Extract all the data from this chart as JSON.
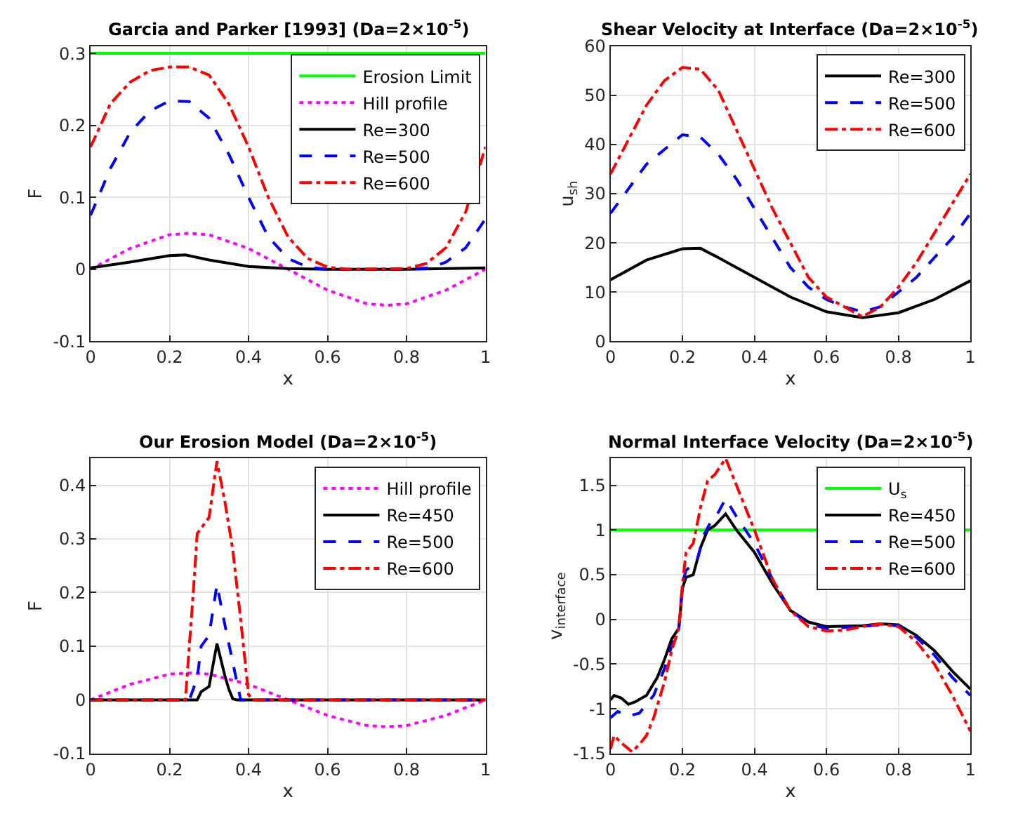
{
  "chart_data": [
    {
      "type": "line",
      "title": "Garcia and Parker [1993] (Da=2×10$^{-5}$)",
      "xlabel": "x",
      "ylabel": "F",
      "xlim": [
        0,
        1
      ],
      "ylim": [
        -0.1,
        0.31
      ],
      "xticks": [
        0,
        0.2,
        0.4,
        0.6,
        0.8,
        1
      ],
      "yticks": [
        -0.1,
        0,
        0.1,
        0.2,
        0.3
      ],
      "grid": true,
      "legend": "top right",
      "series": [
        {
          "name": "Erosion Limit",
          "color": "#00ff00",
          "line_style": "solid",
          "x": [
            0,
            1
          ],
          "values": [
            0.3,
            0.3
          ]
        },
        {
          "name": "Hill profile",
          "color": "#ff00ff",
          "line_style": "dotted",
          "x": [
            0,
            0.1,
            0.2,
            0.25,
            0.3,
            0.4,
            0.5,
            0.6,
            0.7,
            0.75,
            0.8,
            0.9,
            1
          ],
          "values": [
            0,
            0.029,
            0.048,
            0.05,
            0.048,
            0.029,
            0,
            -0.029,
            -0.048,
            -0.05,
            -0.048,
            -0.029,
            0
          ]
        },
        {
          "name": "Re=300",
          "color": "#000000",
          "line_style": "solid",
          "x": [
            0,
            0.1,
            0.2,
            0.24,
            0.3,
            0.4,
            0.5,
            0.6,
            0.8,
            0.9,
            1
          ],
          "values": [
            0.002,
            0.01,
            0.019,
            0.02,
            0.013,
            0.004,
            0.001,
            0,
            0,
            0.001,
            0.002
          ]
        },
        {
          "name": "Re=500",
          "color": "#0000ff",
          "line_style": "dashed",
          "x": [
            0,
            0.05,
            0.1,
            0.15,
            0.2,
            0.25,
            0.3,
            0.35,
            0.4,
            0.45,
            0.5,
            0.55,
            0.6,
            0.8,
            0.86,
            0.9,
            0.95,
            1
          ],
          "values": [
            0.075,
            0.14,
            0.19,
            0.22,
            0.234,
            0.233,
            0.21,
            0.16,
            0.1,
            0.045,
            0.015,
            0.003,
            0,
            0,
            0.002,
            0.01,
            0.03,
            0.07
          ]
        },
        {
          "name": "Re=600",
          "color": "#ff0000",
          "line_style": "dashdot",
          "x": [
            0,
            0.05,
            0.1,
            0.15,
            0.2,
            0.25,
            0.3,
            0.35,
            0.4,
            0.45,
            0.5,
            0.55,
            0.6,
            0.65,
            0.8,
            0.85,
            0.9,
            0.95,
            1
          ],
          "values": [
            0.17,
            0.23,
            0.26,
            0.276,
            0.281,
            0.281,
            0.27,
            0.23,
            0.17,
            0.1,
            0.045,
            0.015,
            0.003,
            0,
            0.001,
            0.008,
            0.03,
            0.08,
            0.17
          ]
        }
      ]
    },
    {
      "type": "line",
      "title": "Shear Velocity at Interface (Da=2×10$^{-5}$)",
      "xlabel": "x",
      "ylabel": "u$_{sh}$",
      "xlim": [
        0,
        1
      ],
      "ylim": [
        0,
        60
      ],
      "xticks": [
        0,
        0.2,
        0.4,
        0.6,
        0.8,
        1
      ],
      "yticks": [
        0,
        10,
        20,
        30,
        40,
        50,
        60
      ],
      "grid": true,
      "legend": "top right",
      "series": [
        {
          "name": "Re=300",
          "color": "#000000",
          "line_style": "solid",
          "x": [
            0,
            0.1,
            0.2,
            0.25,
            0.3,
            0.4,
            0.5,
            0.6,
            0.7,
            0.8,
            0.9,
            1
          ],
          "values": [
            12.5,
            16.5,
            18.8,
            18.9,
            17,
            13,
            9,
            6,
            4.8,
            5.8,
            8.5,
            12.3
          ]
        },
        {
          "name": "Re=500",
          "color": "#0000ff",
          "line_style": "dashed",
          "x": [
            0,
            0.05,
            0.1,
            0.15,
            0.2,
            0.25,
            0.3,
            0.35,
            0.4,
            0.45,
            0.5,
            0.55,
            0.6,
            0.65,
            0.7,
            0.75,
            0.8,
            0.85,
            0.9,
            0.95,
            1
          ],
          "values": [
            26,
            31,
            36,
            39,
            42,
            41.5,
            38,
            33,
            27,
            21,
            15,
            11,
            8.5,
            7,
            6,
            7,
            10,
            13,
            17,
            21,
            26
          ]
        },
        {
          "name": "Re=600",
          "color": "#ff0000",
          "line_style": "dashdot",
          "x": [
            0,
            0.05,
            0.1,
            0.15,
            0.2,
            0.25,
            0.3,
            0.35,
            0.4,
            0.45,
            0.5,
            0.55,
            0.6,
            0.65,
            0.7,
            0.75,
            0.8,
            0.85,
            0.9,
            0.95,
            1
          ],
          "values": [
            34,
            41,
            48,
            53,
            55.7,
            55.3,
            51,
            43,
            35,
            27,
            20,
            13,
            9,
            7,
            5,
            7,
            11,
            16,
            22,
            28,
            34
          ]
        }
      ]
    },
    {
      "type": "line",
      "title": "Our Erosion Model (Da=2×10$^{-5}$)",
      "xlabel": "x",
      "ylabel": "F",
      "xlim": [
        0,
        1
      ],
      "ylim": [
        -0.1,
        0.45
      ],
      "xticks": [
        0,
        0.2,
        0.4,
        0.6,
        0.8,
        1
      ],
      "yticks": [
        -0.1,
        0,
        0.1,
        0.2,
        0.3,
        0.4
      ],
      "grid": true,
      "legend": "top right",
      "series": [
        {
          "name": "Hill profile",
          "color": "#ff00ff",
          "line_style": "dotted",
          "x": [
            0,
            0.1,
            0.2,
            0.25,
            0.3,
            0.4,
            0.5,
            0.6,
            0.7,
            0.75,
            0.8,
            0.9,
            1
          ],
          "values": [
            0,
            0.029,
            0.048,
            0.05,
            0.048,
            0.029,
            0,
            -0.029,
            -0.048,
            -0.05,
            -0.048,
            -0.029,
            0
          ]
        },
        {
          "name": "Re=450",
          "color": "#000000",
          "line_style": "solid",
          "x": [
            0,
            0.27,
            0.28,
            0.3,
            0.32,
            0.34,
            0.35,
            0.36,
            0.37,
            1
          ],
          "values": [
            0,
            0,
            0.015,
            0.025,
            0.105,
            0.045,
            0.02,
            0.002,
            0,
            0
          ]
        },
        {
          "name": "Re=500",
          "color": "#0000ff",
          "line_style": "dashed",
          "x": [
            0,
            0.25,
            0.27,
            0.28,
            0.3,
            0.32,
            0.34,
            0.36,
            0.38,
            1
          ],
          "values": [
            0,
            0,
            0.04,
            0.1,
            0.12,
            0.215,
            0.14,
            0.07,
            0,
            0
          ]
        },
        {
          "name": "Re=600",
          "color": "#ff0000",
          "line_style": "dashdot",
          "x": [
            0,
            0.24,
            0.26,
            0.27,
            0.29,
            0.3,
            0.32,
            0.34,
            0.36,
            0.38,
            0.4,
            0.41,
            1
          ],
          "values": [
            0,
            0,
            0.2,
            0.31,
            0.33,
            0.34,
            0.445,
            0.37,
            0.28,
            0.15,
            0.01,
            0,
            0
          ]
        }
      ]
    },
    {
      "type": "line",
      "title": "Normal Interface Velocity (Da=2×10$^{-5}$)",
      "xlabel": "x",
      "ylabel": "v$_{interface}$",
      "xlim": [
        0,
        1
      ],
      "ylim": [
        -1.5,
        1.8
      ],
      "xticks": [
        0,
        0.2,
        0.4,
        0.6,
        0.8,
        1
      ],
      "yticks": [
        -1.5,
        -1,
        -0.5,
        0,
        0.5,
        1,
        1.5
      ],
      "grid": true,
      "legend": "top right",
      "series": [
        {
          "name": "U$_{s}$",
          "color": "#00ff00",
          "line_style": "solid",
          "x": [
            0,
            1
          ],
          "values": [
            1,
            1
          ]
        },
        {
          "name": "Re=450",
          "color": "#000000",
          "line_style": "solid",
          "x": [
            0,
            0.01,
            0.03,
            0.05,
            0.07,
            0.1,
            0.13,
            0.15,
            0.17,
            0.19,
            0.2,
            0.21,
            0.23,
            0.25,
            0.27,
            0.29,
            0.32,
            0.35,
            0.4,
            0.45,
            0.5,
            0.55,
            0.6,
            0.7,
            0.75,
            0.8,
            0.85,
            0.9,
            0.95,
            1
          ],
          "values": [
            -0.9,
            -0.85,
            -0.88,
            -0.95,
            -0.92,
            -0.85,
            -0.65,
            -0.45,
            -0.22,
            -0.1,
            0.35,
            0.47,
            0.5,
            0.8,
            1.0,
            1.05,
            1.18,
            1.0,
            0.75,
            0.4,
            0.1,
            -0.03,
            -0.08,
            -0.07,
            -0.05,
            -0.06,
            -0.18,
            -0.35,
            -0.58,
            -0.78
          ]
        },
        {
          "name": "Re=500",
          "color": "#0000ff",
          "line_style": "dashed",
          "x": [
            0,
            0.02,
            0.05,
            0.08,
            0.12,
            0.15,
            0.17,
            0.19,
            0.2,
            0.21,
            0.24,
            0.26,
            0.28,
            0.3,
            0.32,
            0.35,
            0.4,
            0.45,
            0.5,
            0.55,
            0.6,
            0.7,
            0.75,
            0.8,
            0.85,
            0.9,
            0.95,
            1
          ],
          "values": [
            -1.1,
            -1.03,
            -1.08,
            -1.05,
            -0.85,
            -0.55,
            -0.3,
            -0.1,
            0.4,
            0.55,
            0.65,
            0.95,
            1.1,
            1.2,
            1.35,
            1.15,
            0.85,
            0.45,
            0.1,
            -0.05,
            -0.1,
            -0.08,
            -0.06,
            -0.07,
            -0.2,
            -0.4,
            -0.65,
            -0.85
          ]
        },
        {
          "name": "Re=600",
          "color": "#ff0000",
          "line_style": "dashdot",
          "x": [
            0,
            0.01,
            0.03,
            0.06,
            0.08,
            0.1,
            0.12,
            0.15,
            0.17,
            0.19,
            0.2,
            0.21,
            0.23,
            0.25,
            0.27,
            0.29,
            0.32,
            0.35,
            0.4,
            0.45,
            0.5,
            0.55,
            0.6,
            0.65,
            0.7,
            0.75,
            0.8,
            0.85,
            0.9,
            0.95,
            1
          ],
          "values": [
            -1.45,
            -1.3,
            -1.38,
            -1.48,
            -1.4,
            -1.3,
            -1.1,
            -0.7,
            -0.35,
            -0.1,
            0.4,
            0.75,
            0.85,
            1.25,
            1.55,
            1.62,
            1.8,
            1.5,
            1.0,
            0.45,
            0.1,
            -0.08,
            -0.13,
            -0.12,
            -0.08,
            -0.05,
            -0.08,
            -0.25,
            -0.5,
            -0.85,
            -1.25
          ]
        }
      ]
    }
  ]
}
